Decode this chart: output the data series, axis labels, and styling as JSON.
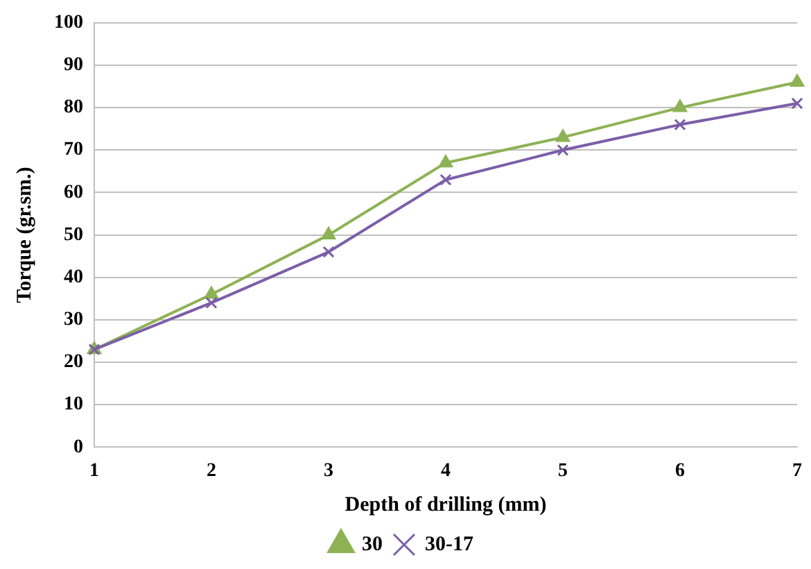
{
  "chart_data": {
    "type": "line",
    "xlabel": "Depth of drilling (mm)",
    "ylabel": "Torque (gr.sm.)",
    "categories": [
      "1",
      "2",
      "3",
      "4",
      "5",
      "6",
      "7"
    ],
    "series": [
      {
        "name": "30",
        "color": "#8db255",
        "marker": "triangle",
        "values": [
          23,
          36,
          50,
          67,
          73,
          80,
          86
        ]
      },
      {
        "name": "30-17",
        "color": "#7b5ea7",
        "marker": "cross",
        "values": [
          23,
          34,
          46,
          63,
          70,
          76,
          81
        ]
      }
    ],
    "ylim": [
      0,
      100
    ],
    "yticks": [
      0,
      10,
      20,
      30,
      40,
      50,
      60,
      70,
      80,
      90,
      100
    ],
    "grid": "y",
    "legend": "bottom"
  }
}
